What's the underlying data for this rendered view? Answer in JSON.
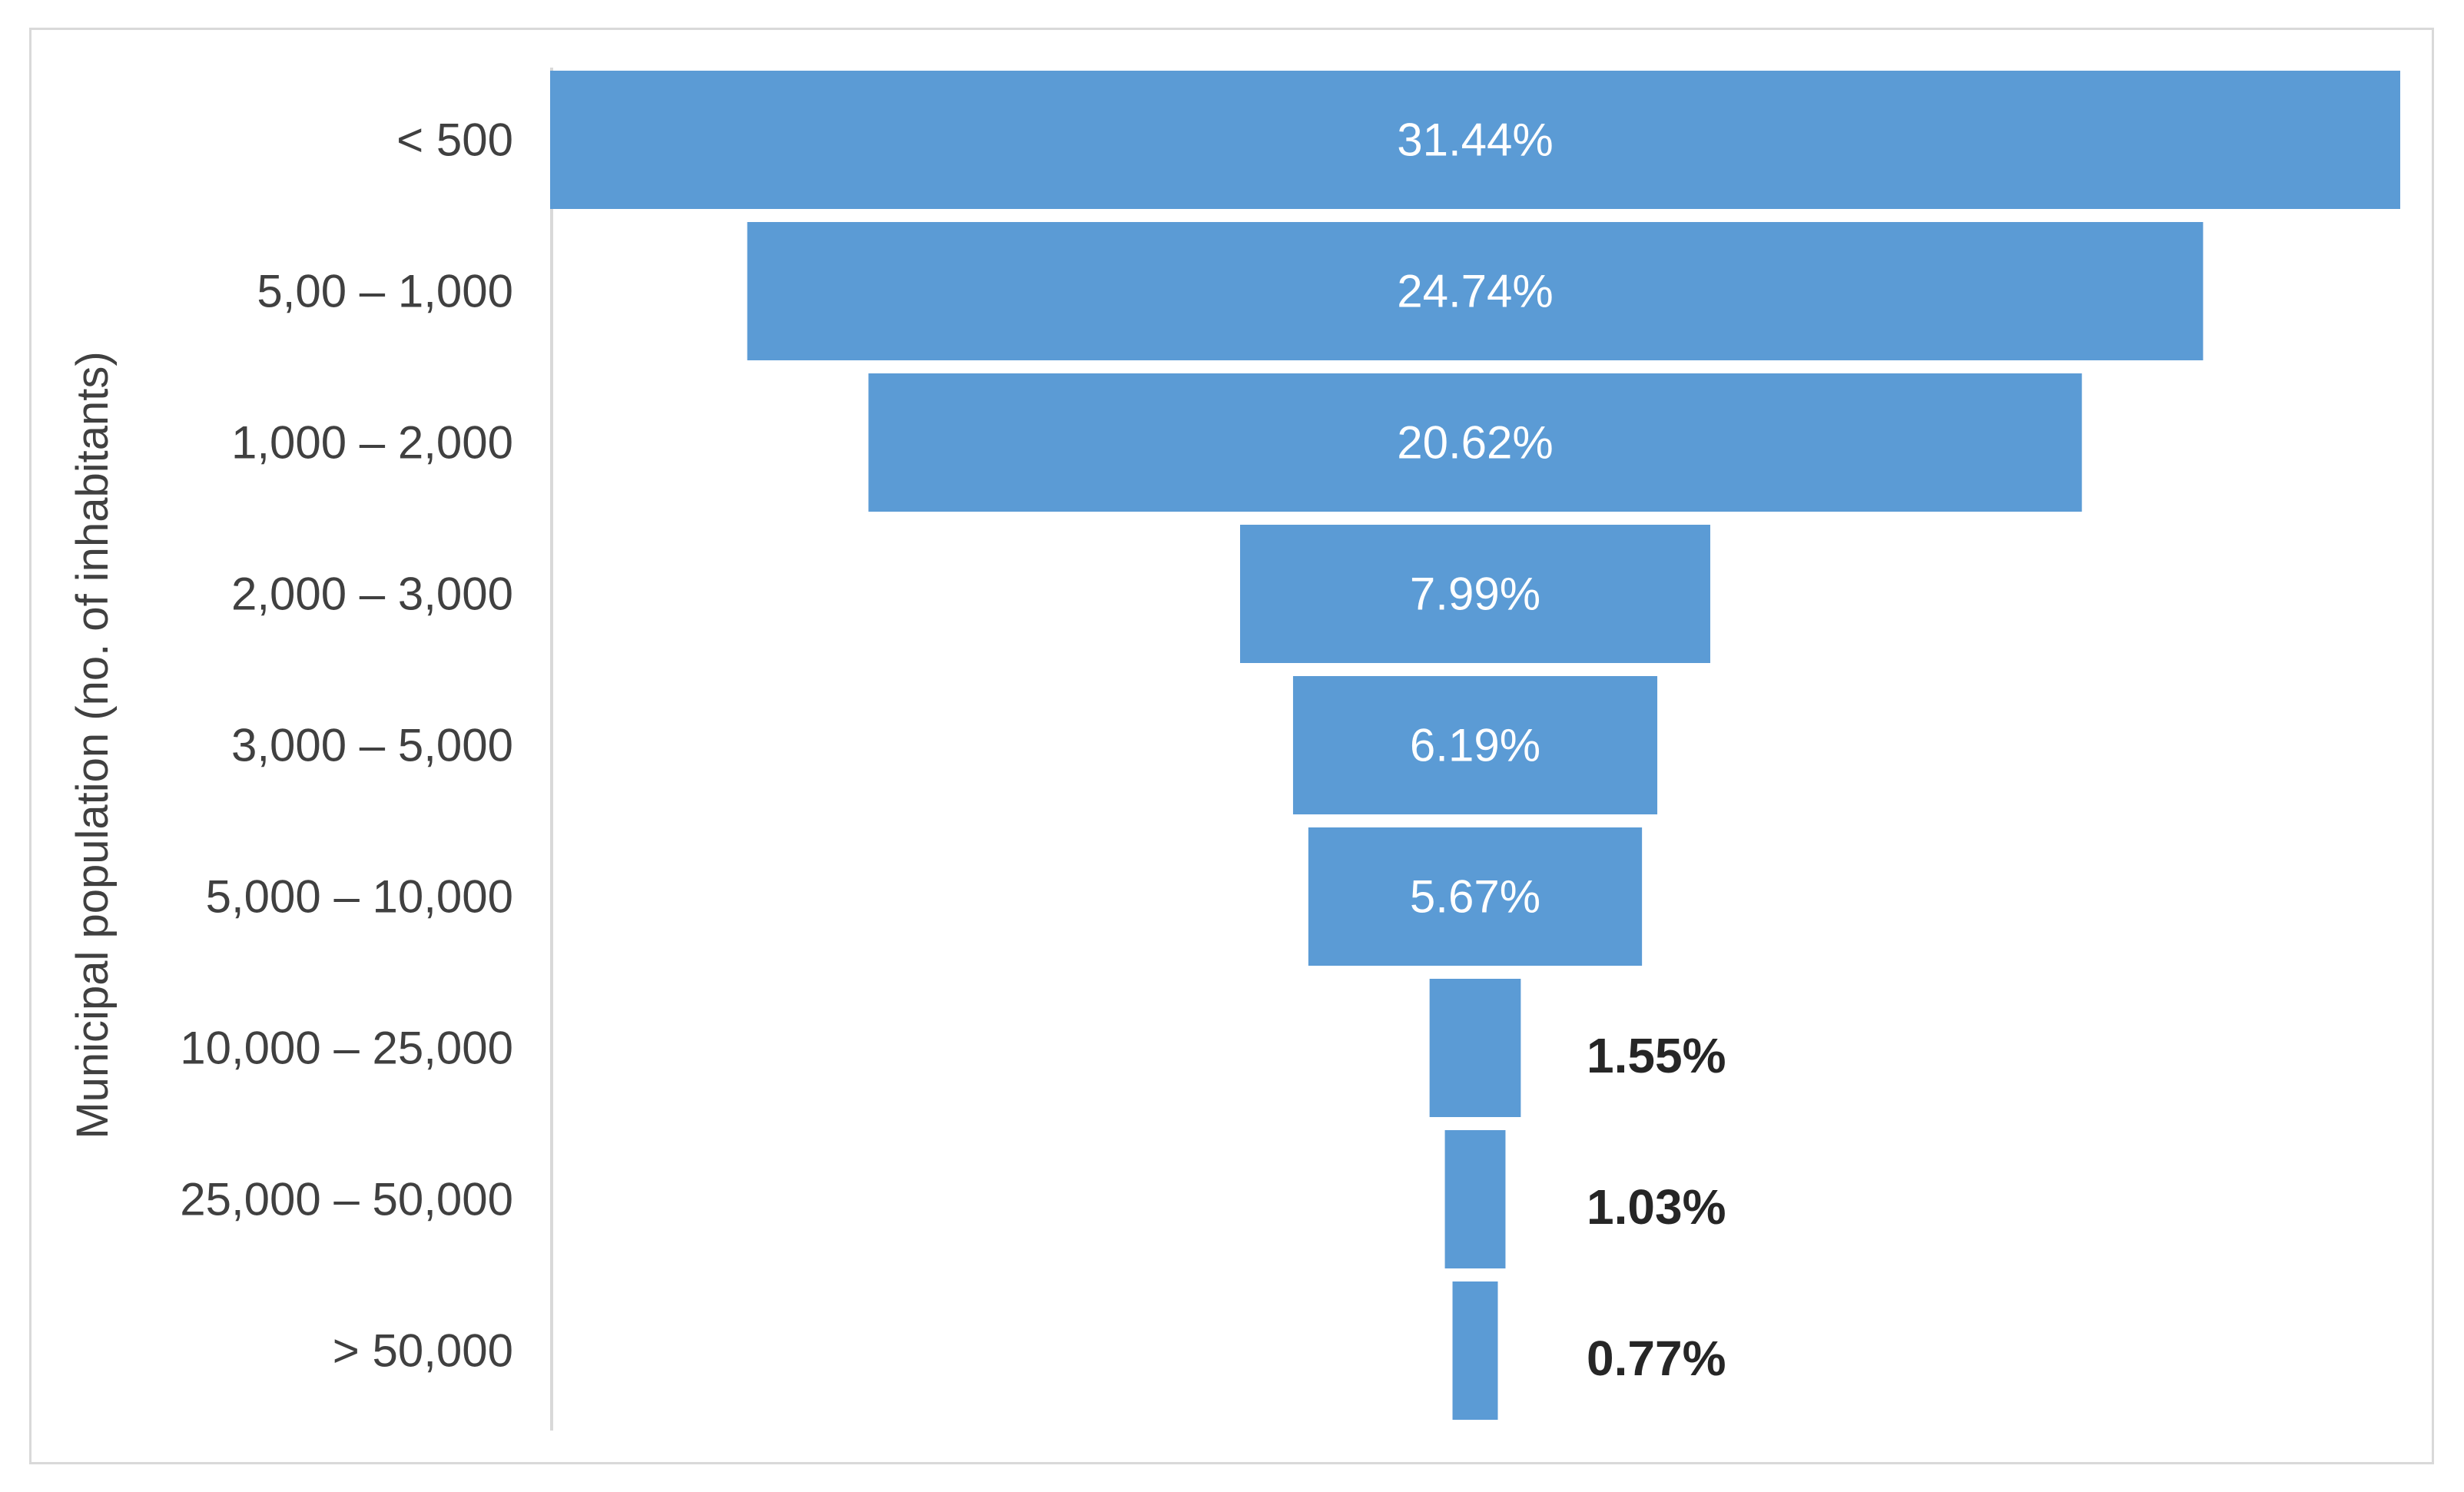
{
  "chart_data": {
    "type": "bar",
    "orientation": "horizontal-funnel",
    "title": "",
    "xlabel": "",
    "ylabel": "Municipal population (no. of inhabitants)",
    "categories": [
      "< 500",
      "5,00 – 1,000",
      "1,000 – 2,000",
      "2,000 – 3,000",
      "3,000 – 5,000",
      "5,000 – 10,000",
      "10,000 – 25,000",
      "25,000 – 50,000",
      "> 50,000"
    ],
    "values": [
      31.44,
      24.74,
      20.62,
      7.99,
      6.19,
      5.67,
      1.55,
      1.03,
      0.77
    ],
    "value_labels": [
      "31.44%",
      "24.74%",
      "20.62%",
      "7.99%",
      "6.19%",
      "5.67%",
      "1.55%",
      "1.03%",
      "0.77%"
    ],
    "grid": false,
    "legend": "none",
    "colors": {
      "bar": "#5b9bd5",
      "axis": "#d9d9d9",
      "label": "#404040",
      "value_outside": "#262626",
      "value_inside": "#ffffff"
    }
  }
}
